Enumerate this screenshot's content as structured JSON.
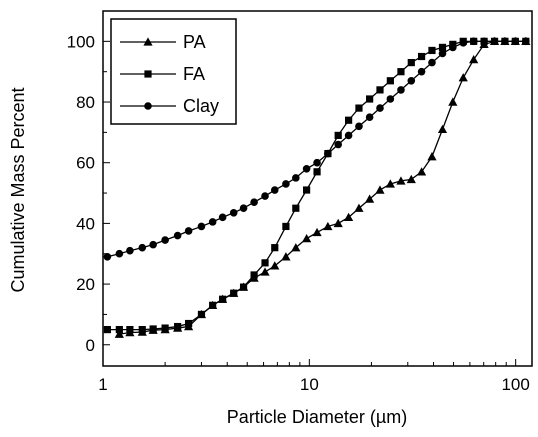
{
  "chart_data": {
    "type": "line",
    "xlabel": "Particle Diameter (µm)",
    "ylabel": "Cumulative Mass Percent",
    "x_scale": "log",
    "xlim": [
      1,
      120
    ],
    "ylim": [
      -7,
      110
    ],
    "x_ticks": [
      1,
      10,
      100
    ],
    "x_tick_labels": [
      "1",
      "10",
      "100"
    ],
    "y_ticks": [
      0,
      20,
      40,
      60,
      80,
      100
    ],
    "y_tick_labels": [
      "0",
      "20",
      "40",
      "60",
      "80",
      "100"
    ],
    "grid": false,
    "legend_position": "top-left",
    "series": [
      {
        "name": "PA",
        "marker": "triangle",
        "x": [
          1.2,
          1.35,
          1.55,
          1.75,
          2.0,
          2.3,
          2.6,
          3.0,
          3.4,
          3.8,
          4.3,
          4.8,
          5.4,
          6.1,
          6.8,
          7.7,
          8.6,
          9.7,
          10.9,
          12.3,
          13.8,
          15.5,
          17.4,
          19.6,
          22.0,
          24.7,
          27.8,
          31.2,
          35.0,
          39.3,
          44.2,
          49.6,
          55.7,
          62.6,
          70.3,
          79.0,
          88.7,
          99.6,
          112.0
        ],
        "y": [
          3.5,
          4,
          4.2,
          4.8,
          5,
          5.5,
          6,
          10,
          13,
          15,
          17,
          19,
          22,
          24,
          26,
          29,
          32,
          35,
          37,
          39,
          40,
          42,
          45,
          48,
          51,
          53,
          54,
          54.5,
          57,
          62,
          71,
          80,
          88,
          94,
          99,
          100,
          100,
          100,
          100
        ]
      },
      {
        "name": "FA",
        "marker": "square",
        "x": [
          1.05,
          1.2,
          1.35,
          1.55,
          1.75,
          2.0,
          2.3,
          2.6,
          3.0,
          3.4,
          3.8,
          4.3,
          4.8,
          5.4,
          6.1,
          6.8,
          7.7,
          8.6,
          9.7,
          10.9,
          12.3,
          13.8,
          15.5,
          17.4,
          19.6,
          22.0,
          24.7,
          27.8,
          31.2,
          35.0,
          39.3,
          44.2,
          49.6,
          55.7,
          62.6,
          70.3,
          79.0,
          88.7,
          99.6,
          112.0
        ],
        "y": [
          5,
          5,
          5,
          5,
          5.2,
          5.5,
          6,
          7,
          10,
          13,
          15,
          17,
          19,
          23,
          27,
          32,
          39,
          45,
          51,
          57,
          63,
          69,
          74,
          78,
          81,
          84,
          87,
          90,
          93,
          95,
          97,
          98,
          99,
          100,
          100,
          100,
          100,
          100,
          100,
          100
        ]
      },
      {
        "name": "Clay",
        "marker": "circle",
        "x": [
          1.05,
          1.2,
          1.35,
          1.55,
          1.75,
          2.0,
          2.3,
          2.6,
          3.0,
          3.4,
          3.8,
          4.3,
          4.8,
          5.4,
          6.1,
          6.8,
          7.7,
          8.6,
          9.7,
          10.9,
          12.3,
          13.8,
          15.5,
          17.4,
          19.6,
          22.0,
          24.7,
          27.8,
          31.2,
          35.0,
          39.3,
          44.2,
          49.6,
          55.7,
          62.6,
          70.3,
          79.0,
          88.7,
          99.6,
          112.0
        ],
        "y": [
          29,
          30,
          31,
          32,
          33,
          34.5,
          36,
          37.5,
          39,
          40.5,
          42,
          43.5,
          45,
          47,
          49,
          51,
          53,
          55,
          58,
          60,
          63,
          66,
          69,
          72,
          75,
          78,
          81,
          84,
          87,
          90,
          93,
          96,
          98,
          99.5,
          100,
          100,
          100,
          100,
          100,
          100
        ]
      }
    ]
  }
}
